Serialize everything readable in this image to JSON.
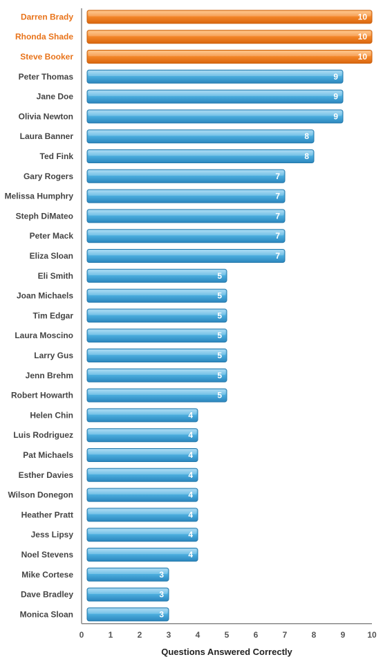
{
  "chart_data": {
    "type": "bar",
    "orientation": "horizontal",
    "title": "",
    "xlabel": "Questions Answered Correctly",
    "ylabel": "",
    "xlim": [
      0,
      10
    ],
    "xticks": [
      0,
      1,
      2,
      3,
      4,
      5,
      6,
      7,
      8,
      9,
      10
    ],
    "grid": false,
    "legend": "none",
    "categories": [
      "Darren Brady",
      "Rhonda Shade",
      "Steve Booker",
      "Peter Thomas",
      "Jane Doe",
      "Olivia Newton",
      "Laura Banner",
      "Ted Fink",
      "Gary Rogers",
      "Melissa Humphry",
      "Steph DiMateo",
      "Peter Mack",
      "Eliza Sloan",
      "Eli Smith",
      "Joan Michaels",
      "Tim Edgar",
      "Laura Moscino",
      "Larry Gus",
      "Jenn Brehm",
      "Robert Howarth",
      "Helen Chin",
      "Luis Rodriguez",
      "Pat Michaels",
      "Esther Davies",
      "Wilson Donegon",
      "Heather Pratt",
      "Jess Lipsy",
      "Noel Stevens",
      "Mike Cortese",
      "Dave Bradley",
      "Monica Sloan"
    ],
    "values": [
      10,
      10,
      10,
      9,
      9,
      9,
      8,
      8,
      7,
      7,
      7,
      7,
      7,
      5,
      5,
      5,
      5,
      5,
      5,
      5,
      4,
      4,
      4,
      4,
      4,
      4,
      4,
      4,
      3,
      3,
      3
    ],
    "highlight_value": 10,
    "colors": {
      "highlight_bar": "#F07E1A",
      "highlight_label": "#E8731A",
      "normal_bar": "#3FA3D6",
      "normal_label": "#444444",
      "axis": "#888888"
    }
  }
}
